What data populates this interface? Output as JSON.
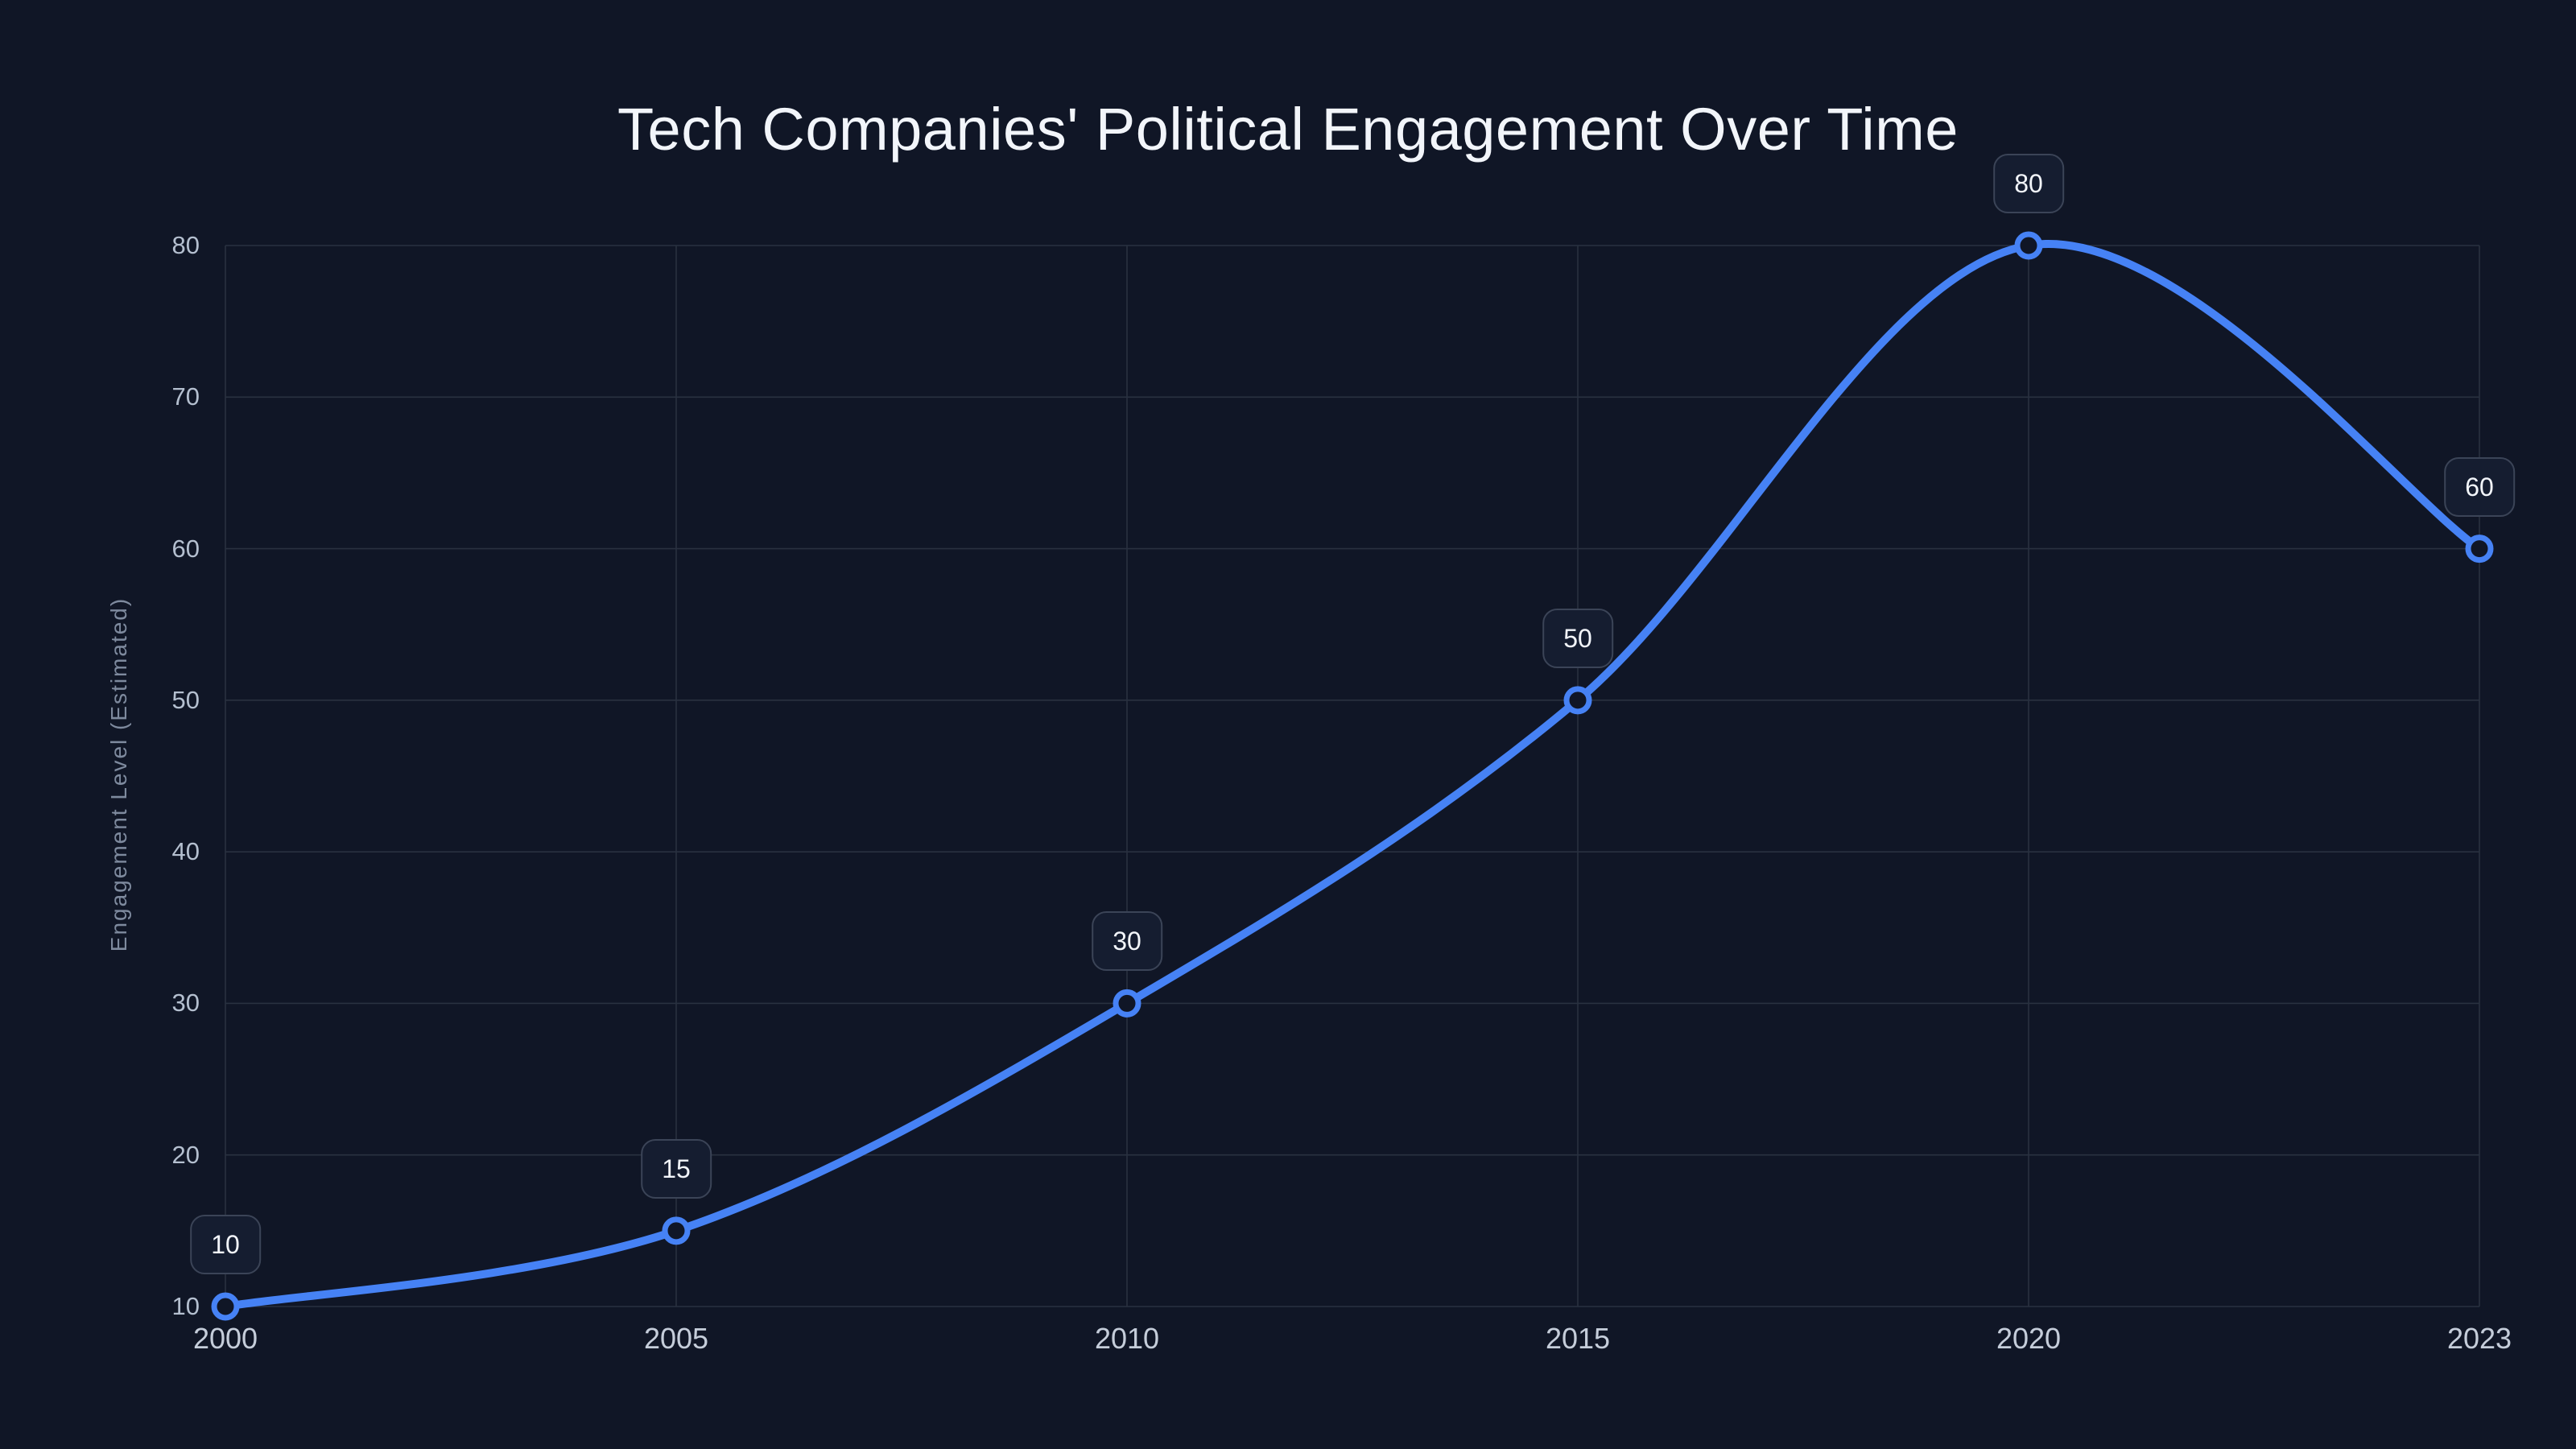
{
  "chart_data": {
    "type": "line",
    "title": "Tech Companies' Political Engagement Over Time",
    "xlabel": "",
    "ylabel": "Engagement Level (Estimated)",
    "categories": [
      "2000",
      "2005",
      "2010",
      "2015",
      "2020",
      "2023"
    ],
    "series": [
      {
        "values": [
          10,
          15,
          30,
          50,
          80,
          60
        ]
      }
    ],
    "point_labels": [
      "10",
      "15",
      "30",
      "50",
      "80",
      "60"
    ],
    "yticks": [
      10,
      20,
      30,
      40,
      50,
      60,
      70,
      80
    ],
    "ylim": [
      10,
      80
    ],
    "grid": true,
    "legend": "none",
    "smooth": true,
    "marker": "open-circle",
    "colors": {
      "background": "#101626",
      "line": "#4682f5",
      "marker_fill": "#101626",
      "grid": "#293140",
      "title_text": "#f2f5fa",
      "y_tick_text": "#b4bfcf",
      "x_tick_text": "#c5cdda",
      "axis_title_text": "#7e8a9e",
      "badge_background": "#151d30",
      "badge_border": "#3b4457",
      "badge_text": "#f2f5fa"
    }
  }
}
